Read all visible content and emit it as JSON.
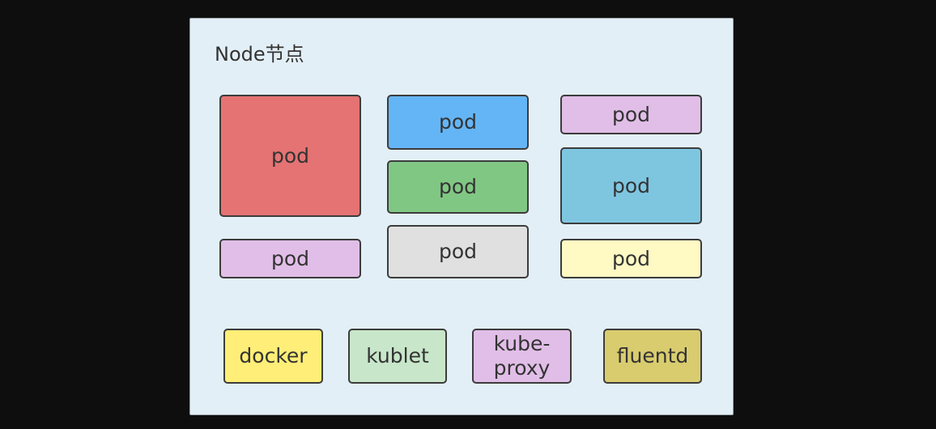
{
  "node": {
    "title": "Node节点"
  },
  "pods": [
    {
      "label": "pod",
      "color": "#e57373"
    },
    {
      "label": "pod",
      "color": "#e1bee7"
    },
    {
      "label": "pod",
      "color": "#64b5f6"
    },
    {
      "label": "pod",
      "color": "#81c784"
    },
    {
      "label": "pod",
      "color": "#e0e0e0"
    },
    {
      "label": "pod",
      "color": "#e1bee7"
    },
    {
      "label": "pod",
      "color": "#7ec6e0"
    },
    {
      "label": "pod",
      "color": "#fff9c4"
    }
  ],
  "components": [
    {
      "label": "docker",
      "color": "#ffee77"
    },
    {
      "label": "kublet",
      "color": "#c8e6c9"
    },
    {
      "label": "kube-proxy",
      "line1": "kube-",
      "line2": "proxy",
      "color": "#e1bee7"
    },
    {
      "label": "fluentd",
      "color": "#d9cc6e"
    }
  ]
}
